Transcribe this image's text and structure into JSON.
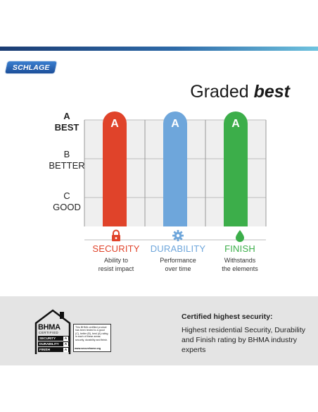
{
  "brand": {
    "logo_text": "SCHLAGE"
  },
  "headline": {
    "regular": "Graded",
    "emphasis": "best"
  },
  "grade_labels": [
    {
      "letter": "A",
      "word": "BEST"
    },
    {
      "letter": "B",
      "word": "BETTER"
    },
    {
      "letter": "C",
      "word": "GOOD"
    }
  ],
  "chart_data": {
    "type": "bar",
    "categories": [
      "SECURITY",
      "DURABILITY",
      "FINISH"
    ],
    "values": [
      "A",
      "A",
      "A"
    ],
    "scale": [
      "C",
      "B",
      "A"
    ],
    "ylabel_ticks": [
      "A BEST",
      "B BETTER",
      "C GOOD"
    ],
    "colors": [
      "#e0432a",
      "#6ea6db",
      "#3cae4a"
    ],
    "bar_labels": [
      "A",
      "A",
      "A"
    ],
    "grid": true
  },
  "categories": [
    {
      "name": "SECURITY",
      "description": [
        "Ability to",
        "resist impact"
      ],
      "icon": "lock-icon",
      "color": "#e0432a"
    },
    {
      "name": "DURABILITY",
      "description": [
        "Performance",
        "over time"
      ],
      "icon": "gear-icon",
      "color": "#6ea6db"
    },
    {
      "name": "FINISH",
      "description": [
        "Withstands",
        "the elements"
      ],
      "icon": "droplet-icon",
      "color": "#3cae4a"
    }
  ],
  "footer": {
    "title": "Certified highest security:",
    "text": "Highest residential Security, Durability and Finish rating by BHMA industry experts"
  },
  "bhma_badge": {
    "name": "BHMA",
    "certified": "CERTIFIED",
    "rows": [
      {
        "label": "SECURITY",
        "grade": "A"
      },
      {
        "label": "DURABILITY",
        "grade": "A"
      },
      {
        "label": "FINISH",
        "grade": "A"
      }
    ],
    "note": "This BHMA certified product has been tested to a good (C), better (B), best (A) rating in each of these areas: security, durability and finish.",
    "url": "www.securehome.org"
  }
}
